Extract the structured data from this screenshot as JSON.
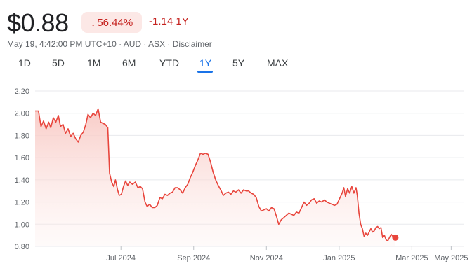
{
  "header": {
    "price": "$0.88",
    "change_pct": "56.44%",
    "change_abs": "-1.14 1Y",
    "meta": "May 19, 4:42:00 PM UTC+10 · AUD · ASX · Disclaimer",
    "arrow_icon": "arrow-down-icon"
  },
  "tabs": [
    {
      "label": "1D"
    },
    {
      "label": "5D"
    },
    {
      "label": "1M"
    },
    {
      "label": "6M"
    },
    {
      "label": "YTD"
    },
    {
      "label": "1Y"
    },
    {
      "label": "5Y"
    },
    {
      "label": "MAX"
    }
  ],
  "active_tab": "1Y",
  "colors": {
    "line": "#e8453c",
    "fill": "#fbd5d1",
    "grid": "#e8eaed",
    "accent": "#1a73e8"
  },
  "chart_data": {
    "type": "area",
    "ylim": [
      0.8,
      2.2
    ],
    "yticks": [
      "2.20",
      "2.00",
      "1.80",
      "1.60",
      "1.40",
      "1.20",
      "1.00",
      "0.80"
    ],
    "xticks": [
      {
        "label": "Jul 2024",
        "t": 0.203
      },
      {
        "label": "Sep 2024",
        "t": 0.375
      },
      {
        "label": "Nov 2024",
        "t": 0.547
      },
      {
        "label": "Jan 2025",
        "t": 0.719
      },
      {
        "label": "Mar 2025",
        "t": 0.891
      },
      {
        "label": "May 2025",
        "t": 0.984
      }
    ],
    "series": [
      {
        "values": [
          [
            0.0,
            2.02
          ],
          [
            0.008,
            2.02
          ],
          [
            0.014,
            1.88
          ],
          [
            0.02,
            1.93
          ],
          [
            0.026,
            1.86
          ],
          [
            0.032,
            1.92
          ],
          [
            0.037,
            1.87
          ],
          [
            0.043,
            1.96
          ],
          [
            0.049,
            1.92
          ],
          [
            0.055,
            1.98
          ],
          [
            0.06,
            1.88
          ],
          [
            0.066,
            1.9
          ],
          [
            0.072,
            1.82
          ],
          [
            0.078,
            1.86
          ],
          [
            0.084,
            1.79
          ],
          [
            0.09,
            1.82
          ],
          [
            0.096,
            1.77
          ],
          [
            0.102,
            1.74
          ],
          [
            0.108,
            1.8
          ],
          [
            0.114,
            1.83
          ],
          [
            0.12,
            1.9
          ],
          [
            0.125,
            1.99
          ],
          [
            0.131,
            1.96
          ],
          [
            0.137,
            2.0
          ],
          [
            0.143,
            1.98
          ],
          [
            0.149,
            2.04
          ],
          [
            0.155,
            1.92
          ],
          [
            0.16,
            1.91
          ],
          [
            0.166,
            1.9
          ],
          [
            0.172,
            1.87
          ],
          [
            0.176,
            1.46
          ],
          [
            0.181,
            1.38
          ],
          [
            0.186,
            1.34
          ],
          [
            0.19,
            1.4
          ],
          [
            0.195,
            1.31
          ],
          [
            0.199,
            1.26
          ],
          [
            0.204,
            1.27
          ],
          [
            0.209,
            1.34
          ],
          [
            0.214,
            1.39
          ],
          [
            0.219,
            1.35
          ],
          [
            0.224,
            1.38
          ],
          [
            0.23,
            1.36
          ],
          [
            0.237,
            1.38
          ],
          [
            0.243,
            1.33
          ],
          [
            0.249,
            1.34
          ],
          [
            0.254,
            1.32
          ],
          [
            0.26,
            1.2
          ],
          [
            0.265,
            1.16
          ],
          [
            0.271,
            1.18
          ],
          [
            0.277,
            1.15
          ],
          [
            0.283,
            1.15
          ],
          [
            0.289,
            1.17
          ],
          [
            0.295,
            1.24
          ],
          [
            0.301,
            1.23
          ],
          [
            0.307,
            1.27
          ],
          [
            0.313,
            1.26
          ],
          [
            0.319,
            1.28
          ],
          [
            0.325,
            1.29
          ],
          [
            0.331,
            1.33
          ],
          [
            0.337,
            1.33
          ],
          [
            0.343,
            1.31
          ],
          [
            0.349,
            1.28
          ],
          [
            0.355,
            1.33
          ],
          [
            0.361,
            1.36
          ],
          [
            0.367,
            1.42
          ],
          [
            0.373,
            1.47
          ],
          [
            0.379,
            1.53
          ],
          [
            0.385,
            1.58
          ],
          [
            0.391,
            1.64
          ],
          [
            0.397,
            1.63
          ],
          [
            0.403,
            1.64
          ],
          [
            0.409,
            1.63
          ],
          [
            0.415,
            1.56
          ],
          [
            0.421,
            1.47
          ],
          [
            0.427,
            1.4
          ],
          [
            0.433,
            1.35
          ],
          [
            0.439,
            1.31
          ],
          [
            0.445,
            1.26
          ],
          [
            0.451,
            1.28
          ],
          [
            0.457,
            1.29
          ],
          [
            0.463,
            1.27
          ],
          [
            0.469,
            1.3
          ],
          [
            0.475,
            1.29
          ],
          [
            0.481,
            1.31
          ],
          [
            0.487,
            1.28
          ],
          [
            0.493,
            1.31
          ],
          [
            0.499,
            1.3
          ],
          [
            0.505,
            1.3
          ],
          [
            0.511,
            1.28
          ],
          [
            0.517,
            1.27
          ],
          [
            0.523,
            1.24
          ],
          [
            0.529,
            1.16
          ],
          [
            0.535,
            1.12
          ],
          [
            0.541,
            1.13
          ],
          [
            0.547,
            1.14
          ],
          [
            0.553,
            1.12
          ],
          [
            0.559,
            1.15
          ],
          [
            0.565,
            1.14
          ],
          [
            0.571,
            1.07
          ],
          [
            0.576,
            1.0
          ],
          [
            0.582,
            1.04
          ],
          [
            0.588,
            1.06
          ],
          [
            0.594,
            1.08
          ],
          [
            0.6,
            1.1
          ],
          [
            0.606,
            1.09
          ],
          [
            0.612,
            1.08
          ],
          [
            0.618,
            1.11
          ],
          [
            0.624,
            1.1
          ],
          [
            0.63,
            1.15
          ],
          [
            0.636,
            1.2
          ],
          [
            0.642,
            1.17
          ],
          [
            0.648,
            1.19
          ],
          [
            0.654,
            1.22
          ],
          [
            0.66,
            1.23
          ],
          [
            0.666,
            1.19
          ],
          [
            0.672,
            1.21
          ],
          [
            0.678,
            1.2
          ],
          [
            0.684,
            1.22
          ],
          [
            0.69,
            1.2
          ],
          [
            0.696,
            1.19
          ],
          [
            0.702,
            1.18
          ],
          [
            0.708,
            1.17
          ],
          [
            0.714,
            1.18
          ],
          [
            0.72,
            1.23
          ],
          [
            0.726,
            1.28
          ],
          [
            0.73,
            1.33
          ],
          [
            0.734,
            1.25
          ],
          [
            0.739,
            1.32
          ],
          [
            0.744,
            1.28
          ],
          [
            0.749,
            1.34
          ],
          [
            0.754,
            1.28
          ],
          [
            0.759,
            1.33
          ],
          [
            0.762,
            1.26
          ],
          [
            0.766,
            1.1
          ],
          [
            0.77,
            1.0
          ],
          [
            0.774,
            0.96
          ],
          [
            0.778,
            0.89
          ],
          [
            0.782,
            0.92
          ],
          [
            0.786,
            0.9
          ],
          [
            0.79,
            0.93
          ],
          [
            0.794,
            0.96
          ],
          [
            0.798,
            0.93
          ],
          [
            0.802,
            0.94
          ],
          [
            0.806,
            0.97
          ],
          [
            0.81,
            0.98
          ],
          [
            0.814,
            0.96
          ],
          [
            0.818,
            0.97
          ],
          [
            0.822,
            0.88
          ],
          [
            0.826,
            0.9
          ],
          [
            0.83,
            0.86
          ],
          [
            0.834,
            0.85
          ],
          [
            0.838,
            0.88
          ],
          [
            0.842,
            0.91
          ],
          [
            0.846,
            0.89
          ],
          [
            0.852,
            0.88
          ]
        ]
      }
    ],
    "last_point": 0.88
  }
}
